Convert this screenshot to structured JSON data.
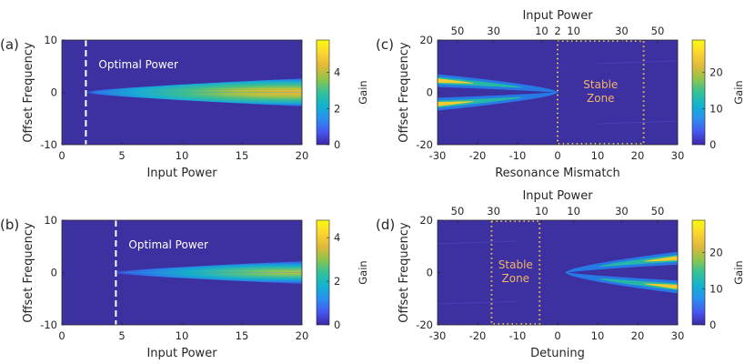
{
  "figure": {
    "colorbar_label": "Gain",
    "colors": {
      "background": "#3d30a0",
      "optimal_line": "#ffffff",
      "stable_zone_border": "#e8c75a",
      "stable_zone_text": "#f3b467",
      "colormap": [
        "#3e26a8",
        "#4658f0",
        "#2a8ff0",
        "#12b3cf",
        "#33c29a",
        "#8ec44a",
        "#e0b93a",
        "#fcd431",
        "#f9fb0e"
      ]
    }
  },
  "chart_data": [
    {
      "panel": "(a)",
      "type": "heatmap",
      "xlabel": "Input Power",
      "ylabel": "Offset Frequency",
      "xlim": [
        0,
        20
      ],
      "ylim": [
        -10,
        10
      ],
      "xticks": [
        0,
        5,
        10,
        15,
        20
      ],
      "yticks": [
        -10,
        0,
        10
      ],
      "colorbar": {
        "label": "Gain",
        "range": [
          0,
          5.8
        ],
        "ticks": [
          0,
          2,
          4
        ]
      },
      "annotation": {
        "text": "Optimal Power",
        "optimal_x": 2
      },
      "gain_lobe": {
        "onset_x": 2,
        "end_x": 20,
        "half_width_at_end": 2.7,
        "peak_gain": 5.2,
        "peak_region_x": [
          13,
          17
        ]
      }
    },
    {
      "panel": "(b)",
      "type": "heatmap",
      "xlabel": "Input Power",
      "ylabel": "Offset Frequency",
      "xlim": [
        0,
        20
      ],
      "ylim": [
        -10,
        10
      ],
      "xticks": [
        0,
        5,
        10,
        15,
        20
      ],
      "yticks": [
        -10,
        0,
        10
      ],
      "colorbar": {
        "label": "Gain",
        "range": [
          0,
          4.8
        ],
        "ticks": [
          0,
          2,
          4
        ]
      },
      "annotation": {
        "text": "Optimal Power",
        "optimal_x": 4.5
      },
      "gain_lobe": {
        "onset_x": 4.5,
        "end_x": 20,
        "half_width_at_end": 2.2,
        "peak_gain": 3.6,
        "peak_region_x": [
          17,
          20
        ]
      }
    },
    {
      "panel": "(c)",
      "type": "heatmap",
      "xlabel": "Resonance Mismatch",
      "ylabel": "Offset Frequency",
      "top_xlabel": "Input Power",
      "xlim": [
        -30,
        30
      ],
      "ylim": [
        -20,
        20
      ],
      "xticks": [
        -30,
        -20,
        -10,
        0,
        10,
        20,
        30
      ],
      "yticks": [
        -20,
        0,
        20
      ],
      "top_ticks": [
        {
          "label": "50",
          "x": -25
        },
        {
          "label": "30",
          "x": -16
        },
        {
          "label": "10",
          "x": -4
        },
        {
          "label": "2",
          "x": 0
        },
        {
          "label": "10",
          "x": 4
        },
        {
          "label": "30",
          "x": 16
        },
        {
          "label": "50",
          "x": 25
        }
      ],
      "colorbar": {
        "label": "Gain",
        "range": [
          0,
          29
        ],
        "ticks": [
          0,
          10,
          20
        ]
      },
      "stable_zone": {
        "text": [
          "Stable",
          "Zone"
        ],
        "x_range": [
          0,
          21.5
        ]
      },
      "gain_lobe": {
        "side": "left",
        "start_x": -30,
        "end_x": 0,
        "offset_at_start": 4.5,
        "peak_gain": 25
      }
    },
    {
      "panel": "(d)",
      "type": "heatmap",
      "xlabel": "Detuning",
      "ylabel": "Offset Frequency",
      "top_xlabel": "Input Power",
      "xlim": [
        -30,
        30
      ],
      "ylim": [
        -20,
        20
      ],
      "xticks": [
        -30,
        -20,
        -10,
        0,
        10,
        20,
        30
      ],
      "yticks": [
        -20,
        0,
        20
      ],
      "top_ticks": [
        {
          "label": "50",
          "x": -25
        },
        {
          "label": "30",
          "x": -16
        },
        {
          "label": "10",
          "x": -4
        },
        {
          "label": "10",
          "x": 4
        },
        {
          "label": "30",
          "x": 16
        },
        {
          "label": "50",
          "x": 25
        }
      ],
      "colorbar": {
        "label": "Gain",
        "range": [
          0,
          29
        ],
        "ticks": [
          0,
          10,
          20
        ]
      },
      "stable_zone": {
        "text": [
          "Stable",
          "Zone"
        ],
        "x_range": [
          -16.5,
          -4.5
        ]
      },
      "gain_lobe": {
        "side": "right",
        "start_x": 2,
        "end_x": 30,
        "offset_at_end": 5.5,
        "peak_gain": 24
      }
    }
  ]
}
